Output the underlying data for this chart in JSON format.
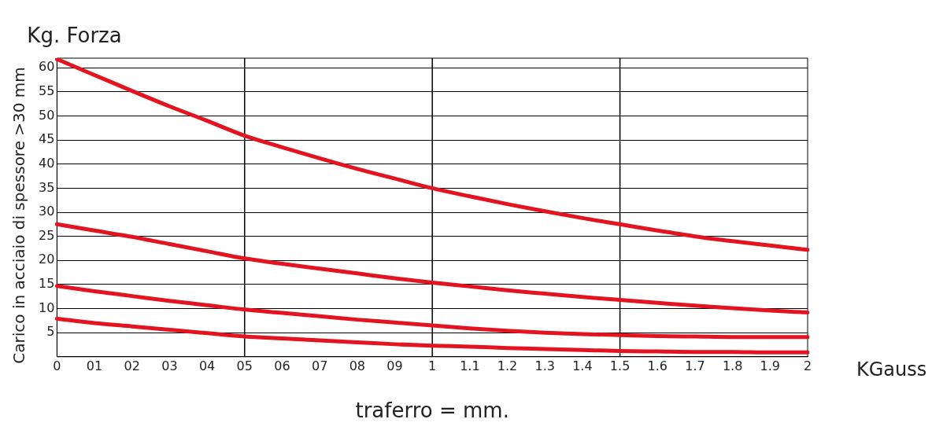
{
  "chart_data": {
    "type": "line",
    "xlabel": "traferro = mm.",
    "ylabel": "Carico in acciaio di spessore >30 mm",
    "annotations": [
      "Kg. Forza",
      "KGauss"
    ],
    "categories": [
      "0",
      "01",
      "02",
      "03",
      "04",
      "05",
      "06",
      "07",
      "08",
      "09",
      "1",
      "1.1",
      "1.2",
      "1.3",
      "1.4",
      "1.5",
      "1.6",
      "1.7",
      "1.8",
      "1.9",
      "2"
    ],
    "ylim": [
      0,
      62
    ],
    "yticks": [
      5,
      10,
      15,
      20,
      25,
      30,
      35,
      40,
      45,
      50,
      55,
      60
    ],
    "grid": "y",
    "legend": false,
    "marker": "none",
    "line_style": "solid",
    "ref_lines": [
      {
        "axis": "x",
        "value": "05",
        "color": "#000000"
      },
      {
        "axis": "x",
        "value": "1",
        "color": "#000000"
      },
      {
        "axis": "x",
        "value": "1.5",
        "color": "#000000"
      }
    ],
    "series": [
      {
        "color": "#e3141f",
        "values": [
          61.8,
          58.5,
          55.2,
          52,
          49,
          45.9,
          43.5,
          41.2,
          39,
          37,
          35,
          33.3,
          31.7,
          30.2,
          28.8,
          27.5,
          26.2,
          25,
          24,
          23.1,
          22.2
        ]
      },
      {
        "color": "#e3141f",
        "values": [
          27.5,
          26.2,
          24.9,
          23.4,
          21.9,
          20.4,
          19.3,
          18.3,
          17.3,
          16.3,
          15.4,
          14.6,
          13.8,
          13.1,
          12.4,
          11.8,
          11.2,
          10.6,
          10.1,
          9.6,
          9.2
        ]
      },
      {
        "color": "#e3141f",
        "values": [
          14.7,
          13.6,
          12.6,
          11.6,
          10.7,
          9.8,
          9.1,
          8.4,
          7.7,
          7.1,
          6.5,
          5.9,
          5.4,
          5,
          4.7,
          4.5,
          4.3,
          4.2,
          4.1,
          4.1,
          4.1
        ]
      },
      {
        "color": "#e3141f",
        "values": [
          7.9,
          7,
          6.3,
          5.6,
          4.9,
          4.2,
          3.8,
          3.4,
          3,
          2.6,
          2.3,
          2.1,
          1.8,
          1.6,
          1.4,
          1.2,
          1.1,
          1,
          1,
          0.9,
          0.9
        ]
      }
    ]
  }
}
